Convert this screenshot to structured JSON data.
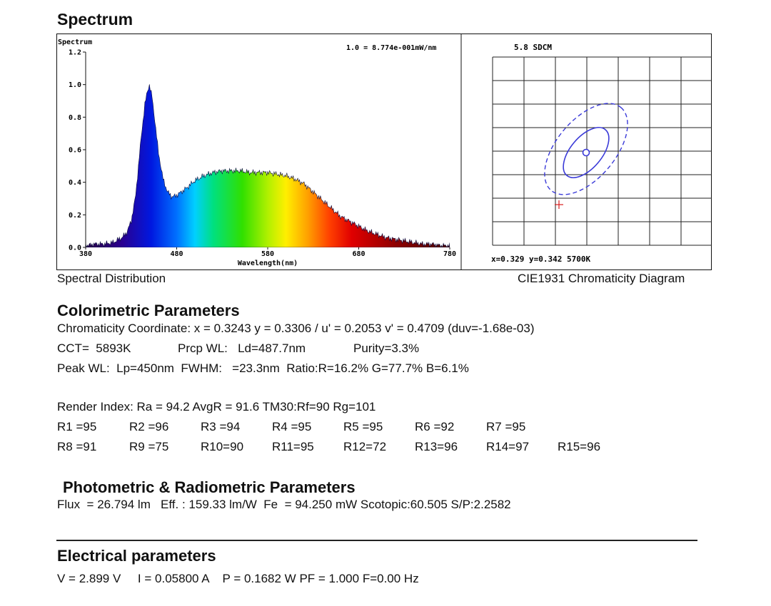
{
  "spectrum_section": {
    "heading": "Spectrum",
    "chart_title": "Spectrum",
    "scale_note": "1.0 = 8.774e-001mW/nm",
    "xlabel": "Wavelength(nm)",
    "caption": "Spectral Distribution"
  },
  "cie_section": {
    "sdcm": "5.8 SDCM",
    "readout": "x=0.329 y=0.342 5700K",
    "caption": "CIE1931 Chromaticity Diagram"
  },
  "chart_data": [
    {
      "type": "area",
      "title": "Spectrum",
      "xlabel": "Wavelength(nm)",
      "ylabel": "",
      "xlim": [
        380,
        780
      ],
      "ylim": [
        0,
        1.2
      ],
      "x_ticks": [
        380,
        480,
        580,
        680,
        780
      ],
      "y_ticks": [
        "0.0",
        "0.2",
        "0.4",
        "0.6",
        "0.8",
        "1.0",
        "1.2"
      ],
      "grid": false,
      "series": [
        {
          "x": [
            380,
            390,
            400,
            410,
            420,
            425,
            430,
            435,
            440,
            445,
            448,
            450,
            453,
            456,
            460,
            465,
            470,
            475,
            480,
            490,
            500,
            510,
            520,
            530,
            540,
            550,
            560,
            570,
            580,
            590,
            600,
            610,
            620,
            630,
            640,
            650,
            660,
            670,
            680,
            690,
            700,
            710,
            720,
            730,
            740,
            750,
            760,
            770,
            780
          ],
          "y": [
            0.01,
            0.02,
            0.02,
            0.03,
            0.06,
            0.09,
            0.16,
            0.32,
            0.62,
            0.88,
            0.96,
            1.0,
            0.92,
            0.78,
            0.58,
            0.42,
            0.34,
            0.31,
            0.32,
            0.36,
            0.41,
            0.44,
            0.46,
            0.47,
            0.47,
            0.47,
            0.46,
            0.46,
            0.46,
            0.45,
            0.44,
            0.42,
            0.39,
            0.34,
            0.29,
            0.24,
            0.19,
            0.16,
            0.13,
            0.1,
            0.08,
            0.06,
            0.05,
            0.04,
            0.03,
            0.02,
            0.02,
            0.01,
            0.01
          ]
        }
      ]
    },
    {
      "type": "scatter",
      "title": "",
      "grid": true,
      "grid_cells": [
        7,
        8
      ],
      "point": {
        "x": 0.329,
        "y": 0.342,
        "cct": "5700K"
      },
      "sdcm": 5.8
    }
  ],
  "colorimetric": {
    "heading": "Colorimetric Parameters",
    "line1": "Chromaticity Coordinate: x = 0.3243 y = 0.3306 / u' = 0.2053 v' = 0.4709 (duv=-1.68e-03)",
    "cct": "CCT=  5893K",
    "prcp": "Prcp WL:   Ld=487.7nm",
    "purity": "Purity=3.3%",
    "peak": "Peak WL:  Lp=450nm  FWHM:   =23.3nm  Ratio:R=16.2% G=77.7% B=6.1%",
    "render": "Render Index: Ra = 94.2 AvgR = 91.6 TM30:Rf=90 Rg=101",
    "r_row1": [
      "R1 =95",
      "R2 =96",
      "R3 =94",
      "R4 =95",
      "R5 =95",
      "R6 =92",
      "R7 =95"
    ],
    "r_row2": [
      "R8 =91",
      "R9 =75",
      "R10=90",
      "R11=95",
      "R12=72",
      "R13=96",
      "R14=97",
      "R15=96"
    ]
  },
  "photometric": {
    "heading": "Photometric & Radiometric Parameters",
    "line": "Flux  = 26.794 lm   Eff. : 159.33 lm/W  Fe  = 94.250 mW Scotopic:60.505 S/P:2.2582"
  },
  "electrical": {
    "heading": "Electrical parameters",
    "line": "V = 2.899 V     I = 0.05800 A    P = 0.1682 W PF = 1.000 F=0.00 Hz"
  },
  "colors": {
    "cie_ellipse": "#3a3ad8",
    "cie_marker": "#d81e1e",
    "axis": "#111111"
  }
}
